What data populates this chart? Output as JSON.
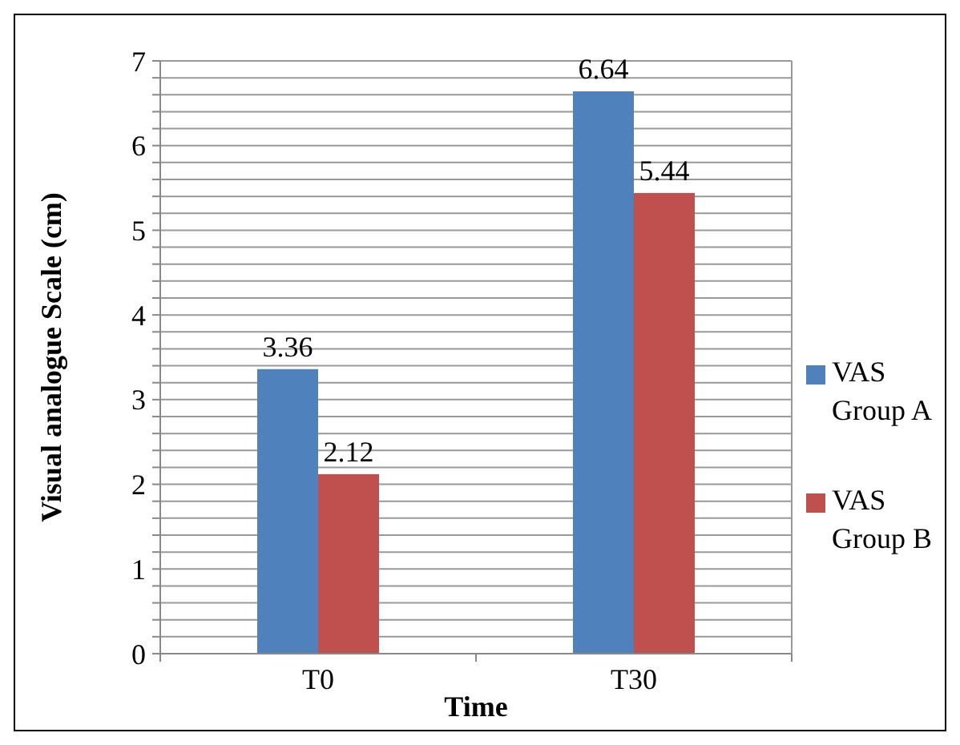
{
  "chart_data": {
    "type": "bar",
    "xlabel": "Time",
    "ylabel": "Visual analogue Scale (cm)",
    "categories": [
      "T0",
      "T30"
    ],
    "series": [
      {
        "name": "VAS Group A",
        "color": "#4f81bd",
        "values": [
          3.36,
          6.64
        ]
      },
      {
        "name": "VAS Group B",
        "color": "#c0504d",
        "values": [
          2.12,
          5.44
        ]
      }
    ],
    "ylim": [
      0,
      7
    ],
    "yticks": [
      0,
      {
        "value": 0.2,
        "label": null
      },
      {
        "value": 0.4,
        "label": null
      },
      {
        "value": 0.6,
        "label": null
      },
      {
        "value": 0.8,
        "label": null
      },
      1,
      {
        "value": 1.2,
        "label": null
      },
      {
        "value": 1.4,
        "label": null
      },
      {
        "value": 1.6,
        "label": null
      },
      {
        "value": 1.8,
        "label": null
      },
      2,
      {
        "value": 2.2,
        "label": null
      },
      {
        "value": 2.4,
        "label": null
      },
      {
        "value": 2.6,
        "label": null
      },
      {
        "value": 2.8,
        "label": null
      },
      3,
      {
        "value": 3.2,
        "label": null
      },
      {
        "value": 3.4,
        "label": null
      },
      {
        "value": 3.6,
        "label": null
      },
      {
        "value": 3.8,
        "label": null
      },
      4,
      {
        "value": 4.2,
        "label": null
      },
      {
        "value": 4.4,
        "label": null
      },
      {
        "value": 4.6,
        "label": null
      },
      {
        "value": 4.8,
        "label": null
      },
      5,
      {
        "value": 5.2,
        "label": null
      },
      {
        "value": 5.4,
        "label": null
      },
      {
        "value": 5.6,
        "label": null
      },
      {
        "value": 5.8,
        "label": null
      },
      6,
      {
        "value": 6.2,
        "label": null
      },
      {
        "value": 6.4,
        "label": null
      },
      {
        "value": 6.6,
        "label": null
      },
      {
        "value": 6.8,
        "label": null
      },
      7
    ],
    "grid": "y",
    "legend": "right",
    "data_labels": true
  }
}
